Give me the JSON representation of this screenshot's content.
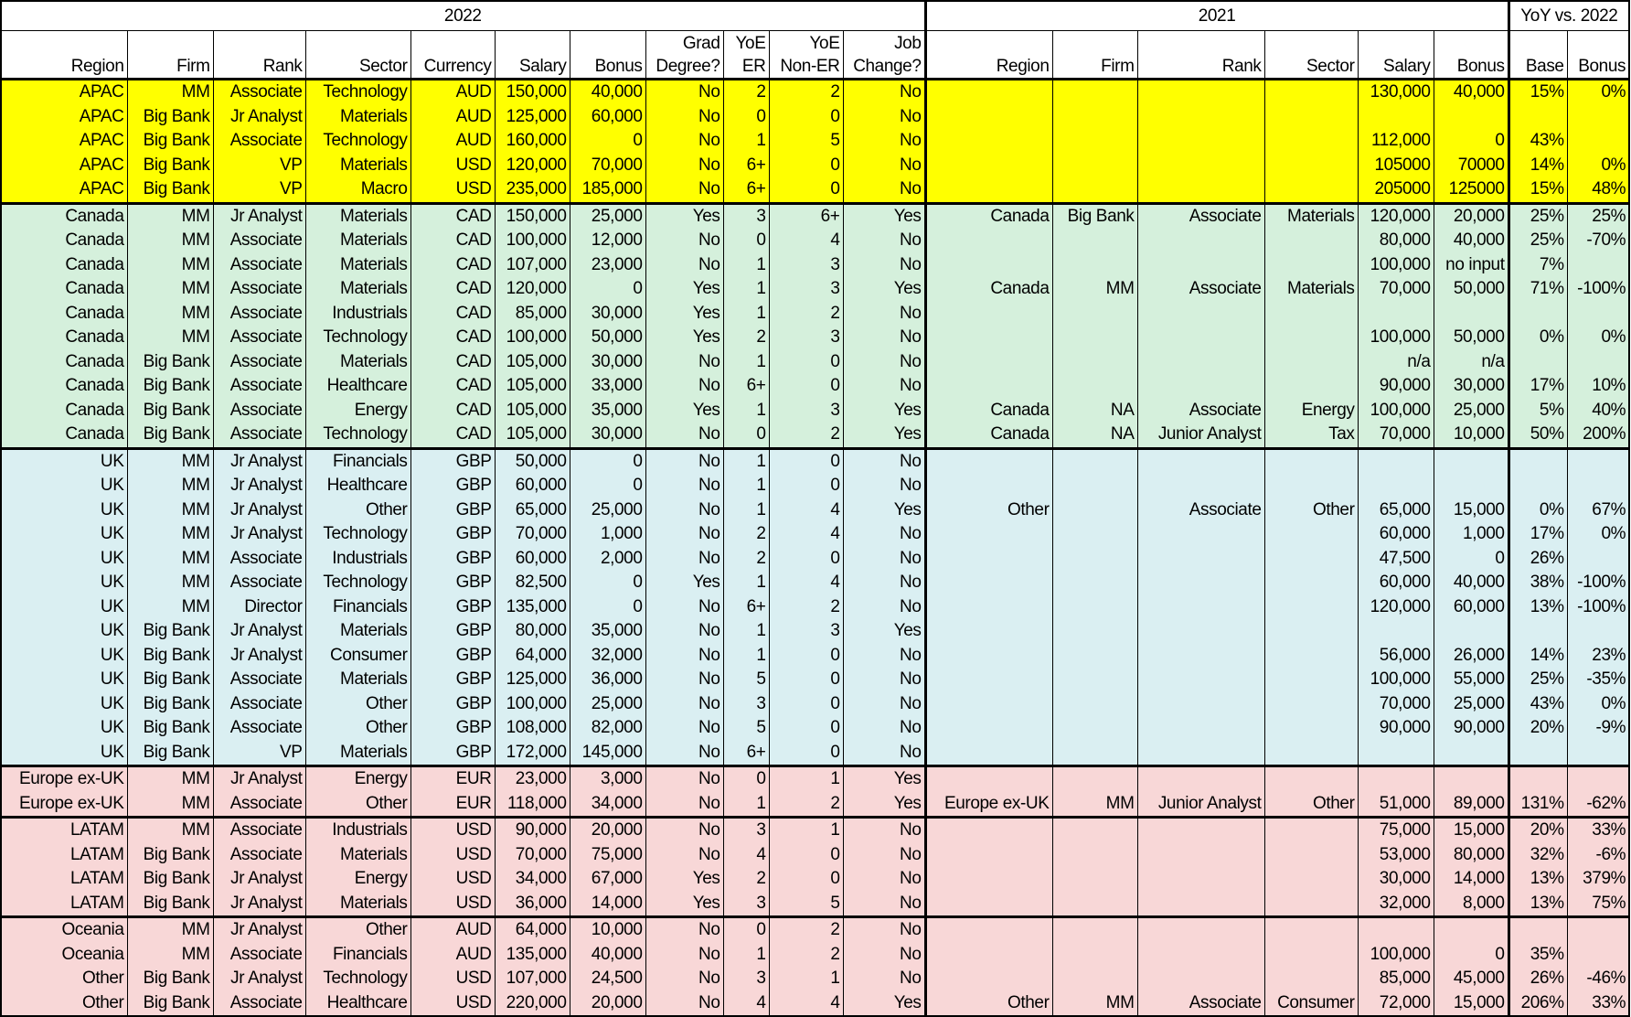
{
  "header": {
    "groups": [
      "2022",
      "2021",
      "YoY vs. 2022"
    ],
    "columns": [
      "Region",
      "Firm",
      "Rank",
      "Sector",
      "Currency",
      "Salary",
      "Bonus",
      "Grad Degree?",
      "YoE ER",
      "YoE Non-ER",
      "Job Change?",
      "Region",
      "Firm",
      "Rank",
      "Sector",
      "Salary",
      "Bonus",
      "Base",
      "Bonus"
    ]
  },
  "groups": [
    {
      "name": "APAC",
      "color": "#ffff00",
      "rows": [
        [
          "APAC",
          "MM",
          "Associate",
          "Technology",
          "AUD",
          "150,000",
          "40,000",
          "No",
          "2",
          "2",
          "No",
          "",
          "",
          "",
          "",
          "130,000",
          "40,000",
          "15%",
          "0%"
        ],
        [
          "APAC",
          "Big Bank",
          "Jr Analyst",
          "Materials",
          "AUD",
          "125,000",
          "60,000",
          "No",
          "0",
          "0",
          "No",
          "",
          "",
          "",
          "",
          "",
          "",
          "",
          ""
        ],
        [
          "APAC",
          "Big Bank",
          "Associate",
          "Technology",
          "AUD",
          "160,000",
          "0",
          "No",
          "1",
          "5",
          "No",
          "",
          "",
          "",
          "",
          "112,000",
          "0",
          "43%",
          ""
        ],
        [
          "APAC",
          "Big Bank",
          "VP",
          "Materials",
          "USD",
          "120,000",
          "70,000",
          "No",
          "6+",
          "0",
          "No",
          "",
          "",
          "",
          "",
          "105000",
          "70000",
          "14%",
          "0%"
        ],
        [
          "APAC",
          "Big Bank",
          "VP",
          "Macro",
          "USD",
          "235,000",
          "185,000",
          "No",
          "6+",
          "0",
          "No",
          "",
          "",
          "",
          "",
          "205000",
          "125000",
          "15%",
          "48%"
        ]
      ]
    },
    {
      "name": "Canada",
      "color": "#d5f0dc",
      "rows": [
        [
          "Canada",
          "MM",
          "Jr Analyst",
          "Materials",
          "CAD",
          "150,000",
          "25,000",
          "Yes",
          "3",
          "6+",
          "Yes",
          "Canada",
          "Big Bank",
          "Associate",
          "Materials",
          "120,000",
          "20,000",
          "25%",
          "25%"
        ],
        [
          "Canada",
          "MM",
          "Associate",
          "Materials",
          "CAD",
          "100,000",
          "12,000",
          "No",
          "0",
          "4",
          "No",
          "",
          "",
          "",
          "",
          "80,000",
          "40,000",
          "25%",
          "-70%"
        ],
        [
          "Canada",
          "MM",
          "Associate",
          "Materials",
          "CAD",
          "107,000",
          "23,000",
          "No",
          "1",
          "3",
          "No",
          "",
          "",
          "",
          "",
          "100,000",
          "no input",
          "7%",
          ""
        ],
        [
          "Canada",
          "MM",
          "Associate",
          "Materials",
          "CAD",
          "120,000",
          "0",
          "Yes",
          "1",
          "3",
          "Yes",
          "Canada",
          "MM",
          "Associate",
          "Materials",
          "70,000",
          "50,000",
          "71%",
          "-100%"
        ],
        [
          "Canada",
          "MM",
          "Associate",
          "Industrials",
          "CAD",
          "85,000",
          "30,000",
          "Yes",
          "1",
          "2",
          "No",
          "",
          "",
          "",
          "",
          "",
          "",
          "",
          ""
        ],
        [
          "Canada",
          "MM",
          "Associate",
          "Technology",
          "CAD",
          "100,000",
          "50,000",
          "Yes",
          "2",
          "3",
          "No",
          "",
          "",
          "",
          "",
          "100,000",
          "50,000",
          "0%",
          "0%"
        ],
        [
          "Canada",
          "Big Bank",
          "Associate",
          "Materials",
          "CAD",
          "105,000",
          "30,000",
          "No",
          "1",
          "0",
          "No",
          "",
          "",
          "",
          "",
          "n/a",
          "n/a",
          "",
          ""
        ],
        [
          "Canada",
          "Big Bank",
          "Associate",
          "Healthcare",
          "CAD",
          "105,000",
          "33,000",
          "No",
          "6+",
          "0",
          "No",
          "",
          "",
          "",
          "",
          "90,000",
          "30,000",
          "17%",
          "10%"
        ],
        [
          "Canada",
          "Big Bank",
          "Associate",
          "Energy",
          "CAD",
          "105,000",
          "35,000",
          "Yes",
          "1",
          "3",
          "Yes",
          "Canada",
          "NA",
          "Associate",
          "Energy",
          "100,000",
          "25,000",
          "5%",
          "40%"
        ],
        [
          "Canada",
          "Big Bank",
          "Associate",
          "Technology",
          "CAD",
          "105,000",
          "30,000",
          "No",
          "0",
          "2",
          "Yes",
          "Canada",
          "NA",
          "Junior Analyst",
          "Tax",
          "70,000",
          "10,000",
          "50%",
          "200%"
        ]
      ]
    },
    {
      "name": "UK",
      "color": "#daeff2",
      "rows": [
        [
          "UK",
          "MM",
          "Jr Analyst",
          "Financials",
          "GBP",
          "50,000",
          "0",
          "No",
          "1",
          "0",
          "No",
          "",
          "",
          "",
          "",
          "",
          "",
          "",
          ""
        ],
        [
          "UK",
          "MM",
          "Jr Analyst",
          "Healthcare",
          "GBP",
          "60,000",
          "0",
          "No",
          "1",
          "0",
          "No",
          "",
          "",
          "",
          "",
          "",
          "",
          "",
          ""
        ],
        [
          "UK",
          "MM",
          "Jr Analyst",
          "Other",
          "GBP",
          "65,000",
          "25,000",
          "No",
          "1",
          "4",
          "Yes",
          "Other",
          "",
          "Associate",
          "Other",
          "65,000",
          "15,000",
          "0%",
          "67%"
        ],
        [
          "UK",
          "MM",
          "Jr Analyst",
          "Technology",
          "GBP",
          "70,000",
          "1,000",
          "No",
          "2",
          "4",
          "No",
          "",
          "",
          "",
          "",
          "60,000",
          "1,000",
          "17%",
          "0%"
        ],
        [
          "UK",
          "MM",
          "Associate",
          "Industrials",
          "GBP",
          "60,000",
          "2,000",
          "No",
          "2",
          "0",
          "No",
          "",
          "",
          "",
          "",
          "47,500",
          "0",
          "26%",
          ""
        ],
        [
          "UK",
          "MM",
          "Associate",
          "Technology",
          "GBP",
          "82,500",
          "0",
          "Yes",
          "1",
          "4",
          "No",
          "",
          "",
          "",
          "",
          "60,000",
          "40,000",
          "38%",
          "-100%"
        ],
        [
          "UK",
          "MM",
          "Director",
          "Financials",
          "GBP",
          "135,000",
          "0",
          "No",
          "6+",
          "2",
          "No",
          "",
          "",
          "",
          "",
          "120,000",
          "60,000",
          "13%",
          "-100%"
        ],
        [
          "UK",
          "Big Bank",
          "Jr Analyst",
          "Materials",
          "GBP",
          "80,000",
          "35,000",
          "No",
          "1",
          "3",
          "Yes",
          "",
          "",
          "",
          "",
          "",
          "",
          "",
          ""
        ],
        [
          "UK",
          "Big Bank",
          "Jr Analyst",
          "Consumer",
          "GBP",
          "64,000",
          "32,000",
          "No",
          "1",
          "0",
          "No",
          "",
          "",
          "",
          "",
          "56,000",
          "26,000",
          "14%",
          "23%"
        ],
        [
          "UK",
          "Big Bank",
          "Associate",
          "Materials",
          "GBP",
          "125,000",
          "36,000",
          "No",
          "5",
          "0",
          "No",
          "",
          "",
          "",
          "",
          "100,000",
          "55,000",
          "25%",
          "-35%"
        ],
        [
          "UK",
          "Big Bank",
          "Associate",
          "Other",
          "GBP",
          "100,000",
          "25,000",
          "No",
          "3",
          "0",
          "No",
          "",
          "",
          "",
          "",
          "70,000",
          "25,000",
          "43%",
          "0%"
        ],
        [
          "UK",
          "Big Bank",
          "Associate",
          "Other",
          "GBP",
          "108,000",
          "82,000",
          "No",
          "5",
          "0",
          "No",
          "",
          "",
          "",
          "",
          "90,000",
          "90,000",
          "20%",
          "-9%"
        ],
        [
          "UK",
          "Big Bank",
          "VP",
          "Materials",
          "GBP",
          "172,000",
          "145,000",
          "No",
          "6+",
          "0",
          "No",
          "",
          "",
          "",
          "",
          "",
          "",
          "",
          ""
        ]
      ]
    },
    {
      "name": "Europe ex-UK",
      "color": "#f8d7d7",
      "rows": [
        [
          "Europe ex-UK",
          "MM",
          "Jr Analyst",
          "Energy",
          "EUR",
          "23,000",
          "3,000",
          "No",
          "0",
          "1",
          "Yes",
          "",
          "",
          "",
          "",
          "",
          "",
          "",
          ""
        ],
        [
          "Europe ex-UK",
          "MM",
          "Associate",
          "Other",
          "EUR",
          "118,000",
          "34,000",
          "No",
          "1",
          "2",
          "Yes",
          "Europe ex-UK",
          "MM",
          "Junior Analyst",
          "Other",
          "51,000",
          "89,000",
          "131%",
          "-62%"
        ]
      ]
    },
    {
      "name": "LATAM",
      "color": "#f8d7d7",
      "rows": [
        [
          "LATAM",
          "MM",
          "Associate",
          "Industrials",
          "USD",
          "90,000",
          "20,000",
          "No",
          "3",
          "1",
          "No",
          "",
          "",
          "",
          "",
          "75,000",
          "15,000",
          "20%",
          "33%"
        ],
        [
          "LATAM",
          "Big Bank",
          "Associate",
          "Materials",
          "USD",
          "70,000",
          "75,000",
          "No",
          "4",
          "0",
          "No",
          "",
          "",
          "",
          "",
          "53,000",
          "80,000",
          "32%",
          "-6%"
        ],
        [
          "LATAM",
          "Big Bank",
          "Jr Analyst",
          "Energy",
          "USD",
          "34,000",
          "67,000",
          "Yes",
          "2",
          "0",
          "No",
          "",
          "",
          "",
          "",
          "30,000",
          "14,000",
          "13%",
          "379%"
        ],
        [
          "LATAM",
          "Big Bank",
          "Jr Analyst",
          "Materials",
          "USD",
          "36,000",
          "14,000",
          "Yes",
          "3",
          "5",
          "No",
          "",
          "",
          "",
          "",
          "32,000",
          "8,000",
          "13%",
          "75%"
        ]
      ]
    },
    {
      "name": "Oceania / Other",
      "color": "#f8d7d7",
      "rows": [
        [
          "Oceania",
          "MM",
          "Jr Analyst",
          "Other",
          "AUD",
          "64,000",
          "10,000",
          "No",
          "0",
          "2",
          "No",
          "",
          "",
          "",
          "",
          "",
          "",
          "",
          ""
        ],
        [
          "Oceania",
          "MM",
          "Associate",
          "Financials",
          "AUD",
          "135,000",
          "40,000",
          "No",
          "1",
          "2",
          "No",
          "",
          "",
          "",
          "",
          "100,000",
          "0",
          "35%",
          ""
        ],
        [
          "Other",
          "Big Bank",
          "Jr Analyst",
          "Technology",
          "USD",
          "107,000",
          "24,500",
          "No",
          "3",
          "1",
          "No",
          "",
          "",
          "",
          "",
          "85,000",
          "45,000",
          "26%",
          "-46%"
        ],
        [
          "Other",
          "Big Bank",
          "Associate",
          "Healthcare",
          "USD",
          "220,000",
          "20,000",
          "No",
          "4",
          "4",
          "Yes",
          "Other",
          "MM",
          "Associate",
          "Consumer",
          "72,000",
          "15,000",
          "206%",
          "33%"
        ]
      ]
    }
  ]
}
